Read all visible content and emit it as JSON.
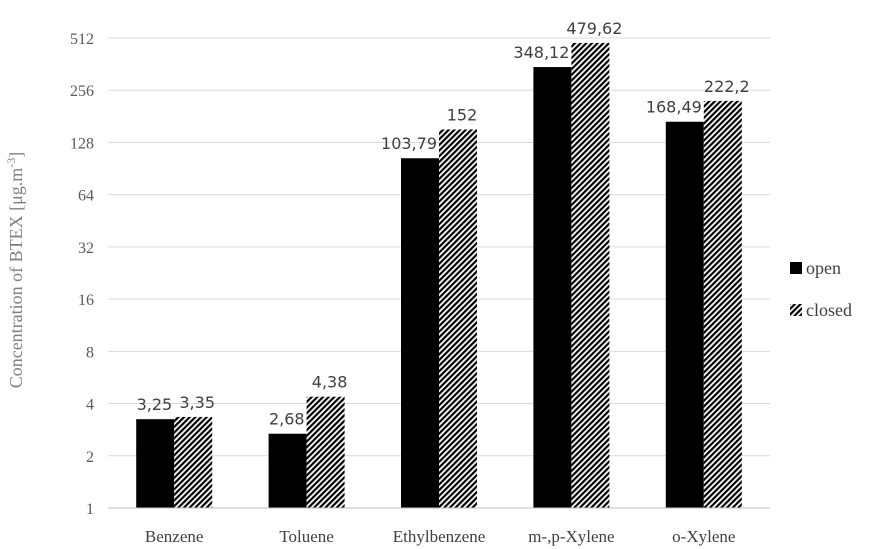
{
  "chart_data": {
    "type": "bar",
    "categories": [
      "Benzene",
      "Toluene",
      "Ethylbenzene",
      "m-,p-Xylene",
      "o-Xylene"
    ],
    "series": [
      {
        "name": "open",
        "values": [
          3.25,
          2.68,
          103.79,
          348.12,
          168.49
        ],
        "labels": [
          "3,25",
          "2,68",
          "103,79",
          "348,12",
          "168,49"
        ],
        "color": "#000000",
        "pattern": "solid"
      },
      {
        "name": "closed",
        "values": [
          3.35,
          4.38,
          152,
          479.62,
          222.2
        ],
        "labels": [
          "3,35",
          "4,38",
          "152",
          "479,62",
          "222,2"
        ],
        "color": "#000000",
        "pattern": "diagonal-hatch"
      }
    ],
    "yscale": "log2",
    "ylim": [
      1,
      512
    ],
    "yticks": [
      "1",
      "2",
      "4",
      "8",
      "16",
      "32",
      "64",
      "128",
      "256",
      "512"
    ],
    "ylabel": "Concentration of BTEX [μg.m",
    "ylabel_sup": "-3",
    "ylabel_close": "]",
    "xlabel": "",
    "title": "",
    "grid": true,
    "legend_position": "right"
  }
}
